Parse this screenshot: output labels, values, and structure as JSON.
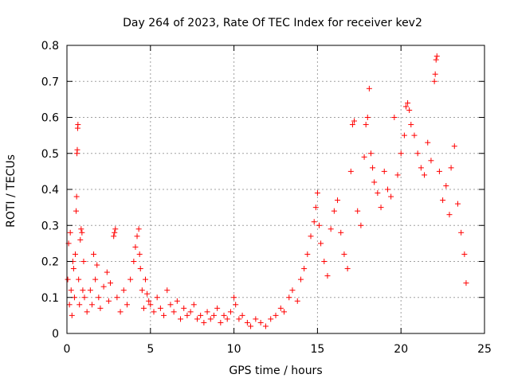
{
  "chart_data": {
    "type": "scatter",
    "title": "Day 264 of 2023, Rate Of TEC Index for receiver kev2",
    "xlabel": "GPS time / hours",
    "ylabel": "ROTI / TECUs",
    "xlim": [
      0,
      25
    ],
    "ylim": [
      0,
      0.8
    ],
    "xticks": [
      0,
      5,
      10,
      15,
      20,
      25
    ],
    "yticks": [
      0,
      0.1,
      0.2,
      0.3,
      0.4,
      0.5,
      0.6,
      0.7,
      0.8
    ],
    "xtick_labels": [
      "0",
      "5",
      "10",
      "15",
      "20",
      "25"
    ],
    "ytick_labels": [
      "0",
      "0.1",
      "0.2",
      "0.3",
      "0.4",
      "0.5",
      "0.6",
      "0.7",
      "0.8"
    ],
    "grid": true,
    "marker": "+",
    "color": "#ff0000",
    "series": [
      {
        "name": "ROTI",
        "points": [
          [
            0.05,
            0.15
          ],
          [
            0.1,
            0.25
          ],
          [
            0.15,
            0.08
          ],
          [
            0.2,
            0.28
          ],
          [
            0.25,
            0.12
          ],
          [
            0.3,
            0.05
          ],
          [
            0.35,
            0.2
          ],
          [
            0.4,
            0.18
          ],
          [
            0.45,
            0.1
          ],
          [
            0.5,
            0.22
          ],
          [
            0.55,
            0.34
          ],
          [
            0.58,
            0.38
          ],
          [
            0.6,
            0.5
          ],
          [
            0.62,
            0.51
          ],
          [
            0.64,
            0.57
          ],
          [
            0.66,
            0.58
          ],
          [
            0.7,
            0.15
          ],
          [
            0.75,
            0.08
          ],
          [
            0.8,
            0.26
          ],
          [
            0.85,
            0.29
          ],
          [
            0.9,
            0.28
          ],
          [
            0.95,
            0.12
          ],
          [
            1.0,
            0.2
          ],
          [
            1.05,
            0.1
          ],
          [
            1.2,
            0.06
          ],
          [
            1.4,
            0.12
          ],
          [
            1.5,
            0.08
          ],
          [
            1.6,
            0.22
          ],
          [
            1.7,
            0.15
          ],
          [
            1.8,
            0.19
          ],
          [
            1.9,
            0.1
          ],
          [
            2.0,
            0.07
          ],
          [
            2.2,
            0.13
          ],
          [
            2.4,
            0.17
          ],
          [
            2.5,
            0.09
          ],
          [
            2.6,
            0.14
          ],
          [
            2.8,
            0.27
          ],
          [
            2.85,
            0.28
          ],
          [
            2.9,
            0.29
          ],
          [
            3.0,
            0.1
          ],
          [
            3.2,
            0.06
          ],
          [
            3.4,
            0.12
          ],
          [
            3.6,
            0.08
          ],
          [
            3.8,
            0.15
          ],
          [
            4.0,
            0.2
          ],
          [
            4.1,
            0.24
          ],
          [
            4.2,
            0.27
          ],
          [
            4.3,
            0.29
          ],
          [
            4.35,
            0.22
          ],
          [
            4.4,
            0.18
          ],
          [
            4.5,
            0.12
          ],
          [
            4.6,
            0.07
          ],
          [
            4.7,
            0.15
          ],
          [
            4.8,
            0.11
          ],
          [
            4.9,
            0.09
          ],
          [
            5.0,
            0.08
          ],
          [
            5.2,
            0.06
          ],
          [
            5.4,
            0.1
          ],
          [
            5.6,
            0.07
          ],
          [
            5.8,
            0.05
          ],
          [
            6.0,
            0.12
          ],
          [
            6.2,
            0.08
          ],
          [
            6.4,
            0.06
          ],
          [
            6.6,
            0.09
          ],
          [
            6.8,
            0.04
          ],
          [
            7.0,
            0.07
          ],
          [
            7.2,
            0.05
          ],
          [
            7.4,
            0.06
          ],
          [
            7.6,
            0.08
          ],
          [
            7.8,
            0.04
          ],
          [
            8.0,
            0.05
          ],
          [
            8.2,
            0.03
          ],
          [
            8.4,
            0.06
          ],
          [
            8.6,
            0.04
          ],
          [
            8.8,
            0.05
          ],
          [
            9.0,
            0.07
          ],
          [
            9.2,
            0.03
          ],
          [
            9.4,
            0.05
          ],
          [
            9.6,
            0.04
          ],
          [
            9.8,
            0.06
          ],
          [
            10.0,
            0.1
          ],
          [
            10.1,
            0.08
          ],
          [
            10.3,
            0.04
          ],
          [
            10.5,
            0.05
          ],
          [
            10.8,
            0.03
          ],
          [
            11.0,
            0.02
          ],
          [
            11.3,
            0.04
          ],
          [
            11.6,
            0.03
          ],
          [
            11.9,
            0.02
          ],
          [
            12.2,
            0.04
          ],
          [
            12.5,
            0.05
          ],
          [
            12.8,
            0.07
          ],
          [
            13.0,
            0.06
          ],
          [
            13.3,
            0.1
          ],
          [
            13.5,
            0.12
          ],
          [
            13.8,
            0.09
          ],
          [
            14.0,
            0.15
          ],
          [
            14.2,
            0.18
          ],
          [
            14.4,
            0.22
          ],
          [
            14.6,
            0.27
          ],
          [
            14.8,
            0.31
          ],
          [
            14.9,
            0.35
          ],
          [
            15.0,
            0.39
          ],
          [
            15.1,
            0.3
          ],
          [
            15.2,
            0.25
          ],
          [
            15.4,
            0.2
          ],
          [
            15.6,
            0.16
          ],
          [
            15.8,
            0.29
          ],
          [
            16.0,
            0.34
          ],
          [
            16.2,
            0.37
          ],
          [
            16.4,
            0.28
          ],
          [
            16.6,
            0.22
          ],
          [
            16.8,
            0.18
          ],
          [
            17.0,
            0.45
          ],
          [
            17.1,
            0.58
          ],
          [
            17.2,
            0.59
          ],
          [
            17.4,
            0.34
          ],
          [
            17.6,
            0.3
          ],
          [
            17.8,
            0.49
          ],
          [
            17.9,
            0.58
          ],
          [
            18.0,
            0.6
          ],
          [
            18.1,
            0.68
          ],
          [
            18.2,
            0.5
          ],
          [
            18.3,
            0.46
          ],
          [
            18.4,
            0.42
          ],
          [
            18.6,
            0.39
          ],
          [
            18.8,
            0.35
          ],
          [
            19.0,
            0.45
          ],
          [
            19.2,
            0.4
          ],
          [
            19.4,
            0.38
          ],
          [
            19.6,
            0.6
          ],
          [
            19.8,
            0.44
          ],
          [
            20.0,
            0.5
          ],
          [
            20.2,
            0.55
          ],
          [
            20.3,
            0.63
          ],
          [
            20.4,
            0.64
          ],
          [
            20.5,
            0.62
          ],
          [
            20.6,
            0.58
          ],
          [
            20.8,
            0.55
          ],
          [
            21.0,
            0.5
          ],
          [
            21.2,
            0.46
          ],
          [
            21.4,
            0.44
          ],
          [
            21.6,
            0.53
          ],
          [
            21.8,
            0.48
          ],
          [
            22.0,
            0.7
          ],
          [
            22.05,
            0.72
          ],
          [
            22.1,
            0.76
          ],
          [
            22.15,
            0.77
          ],
          [
            22.3,
            0.45
          ],
          [
            22.5,
            0.37
          ],
          [
            22.7,
            0.41
          ],
          [
            22.9,
            0.33
          ],
          [
            23.0,
            0.46
          ],
          [
            23.2,
            0.52
          ],
          [
            23.4,
            0.36
          ],
          [
            23.6,
            0.28
          ],
          [
            23.8,
            0.22
          ],
          [
            23.9,
            0.14
          ]
        ]
      }
    ]
  }
}
